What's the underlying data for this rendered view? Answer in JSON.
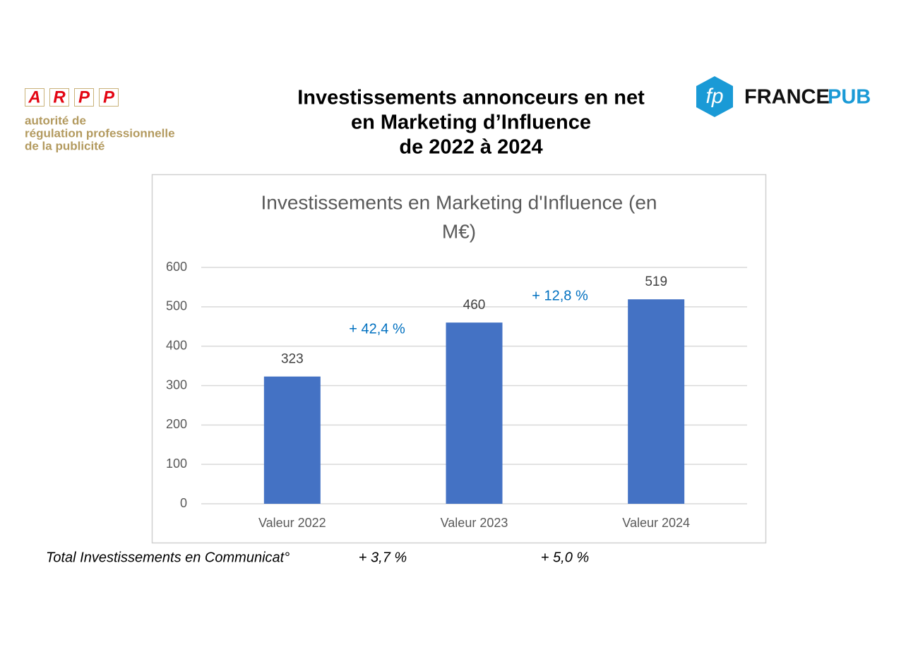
{
  "header": {
    "title": [
      "Investissements annonceurs en net",
      "en Marketing d’Influence",
      "de 2022 à 2024"
    ]
  },
  "logos": {
    "arpp": {
      "letters": [
        "A",
        "R",
        "P",
        "P"
      ],
      "tagline": [
        "autorité de",
        "régulation professionnelle",
        "de la publicité"
      ]
    },
    "france_pub": {
      "icon": "fp",
      "name": [
        "FRANCE",
        "PUB"
      ]
    }
  },
  "chart_data": {
    "type": "bar",
    "title": [
      "Investissements en Marketing d'Influence (en",
      "M€)"
    ],
    "categories": [
      "Valeur 2022",
      "Valeur 2023",
      "Valeur 2024"
    ],
    "values": [
      323,
      460,
      519
    ],
    "color": "#4472c4",
    "ylim": [
      0,
      600
    ],
    "yticks": [
      0,
      100,
      200,
      300,
      400,
      500,
      600
    ],
    "grid": true,
    "annotations": [
      "+ 42,4 %",
      "+ 12,8 %"
    ]
  },
  "footer": {
    "label": "Total Investissements en Communicat°",
    "values": [
      "+ 3,7 %",
      "+ 5,0 %"
    ]
  }
}
